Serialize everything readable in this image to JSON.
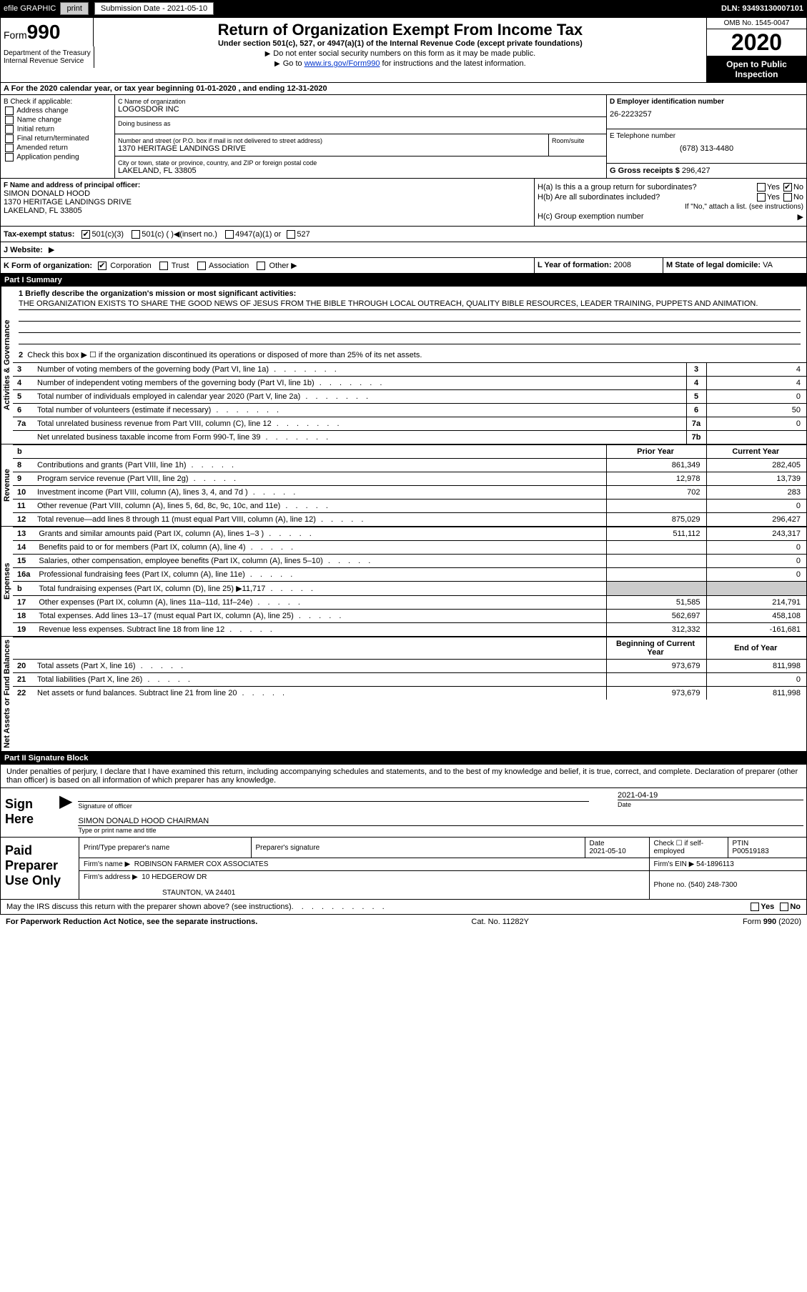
{
  "top_bar": {
    "efile_label": "efile GRAPHIC",
    "print_btn": "print",
    "sub_date_label": "Submission Date - 2021-05-10",
    "dln": "DLN: 93493130007101"
  },
  "header": {
    "form_prefix": "Form",
    "form_num": "990",
    "title": "Return of Organization Exempt From Income Tax",
    "subtitle": "Under section 501(c), 527, or 4947(a)(1) of the Internal Revenue Code (except private foundations)",
    "line1": "Do not enter social security numbers on this form as it may be made public.",
    "line2_pre": "Go to ",
    "line2_link": "www.irs.gov/Form990",
    "line2_post": " for instructions and the latest information.",
    "dept1": "Department of the Treasury",
    "dept2": "Internal Revenue Service",
    "omb": "OMB No. 1545-0047",
    "tax_year": "2020",
    "public_insp": "Open to Public Inspection"
  },
  "row_a": "A For the 2020 calendar year, or tax year beginning 01-01-2020   , and ending 12-31-2020",
  "section_b": {
    "header": "B Check if applicable:",
    "addr_change": "Address change",
    "name_change": "Name change",
    "initial": "Initial return",
    "final": "Final return/terminated",
    "amended": "Amended return",
    "app_pending": "Application pending"
  },
  "section_c": {
    "name_label": "C Name of organization",
    "org_name": "LOGOSDOR INC",
    "dba_label": "Doing business as",
    "addr_label": "Number and street (or P.O. box if mail is not delivered to street address)",
    "addr": "1370 HERITAGE LANDINGS DRIVE",
    "room_label": "Room/suite",
    "city_label": "City or town, state or province, country, and ZIP or foreign postal code",
    "city": "LAKELAND, FL  33805"
  },
  "section_d": {
    "label": "D Employer identification number",
    "ein": "26-2223257"
  },
  "section_e": {
    "label": "E Telephone number",
    "tel": "(678) 313-4480"
  },
  "section_g": {
    "label": "G Gross receipts $",
    "val": "296,427"
  },
  "section_f": {
    "label": "F  Name and address of principal officer:",
    "name": "SIMON DONALD HOOD",
    "addr1": "1370 HERITAGE LANDINGS DRIVE",
    "addr2": "LAKELAND, FL  33805"
  },
  "section_h": {
    "ha_label": "H(a)  Is this a a group return for subordinates?",
    "hb_label": "H(b)  Are all subordinates included?",
    "hb_note": "If \"No,\" attach a list. (see instructions)",
    "hc_label": "H(c)  Group exemption number",
    "yes": "Yes",
    "no": "No"
  },
  "row_i": {
    "label": "Tax-exempt status:",
    "opt1": "501(c)(3)",
    "opt2": "501(c) (  )",
    "insert": "(insert no.)",
    "opt3": "4947(a)(1) or",
    "opt4": "527"
  },
  "row_j": {
    "label": "J  Website:",
    "arrow_only": "▶"
  },
  "row_k": {
    "label": "K Form of organization:",
    "corp": "Corporation",
    "trust": "Trust",
    "assoc": "Association",
    "other": "Other"
  },
  "row_l": {
    "label": "L Year of formation:",
    "val": "2008"
  },
  "row_m": {
    "label": "M State of legal domicile:",
    "val": "VA"
  },
  "part1": {
    "header": "Part I      Summary",
    "vlabel_gov": "Activities & Governance",
    "vlabel_rev": "Revenue",
    "vlabel_exp": "Expenses",
    "vlabel_net": "Net Assets or Fund Balances",
    "line1_label": "1  Briefly describe the organization's mission or most significant activities:",
    "mission": "THE ORGANIZATION EXISTS TO SHARE THE GOOD NEWS OF JESUS FROM THE BIBLE THROUGH LOCAL OUTREACH, QUALITY BIBLE RESOURCES, LEADER TRAINING, PUPPETS AND ANIMATION.",
    "line2": "Check this box ▶ ☐  if the organization discontinued its operations or disposed of more than 25% of its net assets.",
    "rows_gov": [
      {
        "n": "3",
        "label": "Number of voting members of the governing body (Part VI, line 1a)",
        "box": "3",
        "val": "4"
      },
      {
        "n": "4",
        "label": "Number of independent voting members of the governing body (Part VI, line 1b)",
        "box": "4",
        "val": "4"
      },
      {
        "n": "5",
        "label": "Total number of individuals employed in calendar year 2020 (Part V, line 2a)",
        "box": "5",
        "val": "0"
      },
      {
        "n": "6",
        "label": "Total number of volunteers (estimate if necessary)",
        "box": "6",
        "val": "50"
      },
      {
        "n": "7a",
        "label": "Total unrelated business revenue from Part VIII, column (C), line 12",
        "box": "7a",
        "val": "0"
      },
      {
        "n": "",
        "label": "Net unrelated business taxable income from Form 990-T, line 39",
        "box": "7b",
        "val": ""
      }
    ],
    "prior_hdr": "Prior Year",
    "current_hdr": "Current Year",
    "rows_rev": [
      {
        "n": "8",
        "label": "Contributions and grants (Part VIII, line 1h)",
        "prior": "861,349",
        "curr": "282,405"
      },
      {
        "n": "9",
        "label": "Program service revenue (Part VIII, line 2g)",
        "prior": "12,978",
        "curr": "13,739"
      },
      {
        "n": "10",
        "label": "Investment income (Part VIII, column (A), lines 3, 4, and 7d )",
        "prior": "702",
        "curr": "283"
      },
      {
        "n": "11",
        "label": "Other revenue (Part VIII, column (A), lines 5, 6d, 8c, 9c, 10c, and 11e)",
        "prior": "",
        "curr": "0"
      },
      {
        "n": "12",
        "label": "Total revenue—add lines 8 through 11 (must equal Part VIII, column (A), line 12)",
        "prior": "875,029",
        "curr": "296,427"
      }
    ],
    "rows_exp": [
      {
        "n": "13",
        "label": "Grants and similar amounts paid (Part IX, column (A), lines 1–3 )",
        "prior": "511,112",
        "curr": "243,317"
      },
      {
        "n": "14",
        "label": "Benefits paid to or for members (Part IX, column (A), line 4)",
        "prior": "",
        "curr": "0"
      },
      {
        "n": "15",
        "label": "Salaries, other compensation, employee benefits (Part IX, column (A), lines 5–10)",
        "prior": "",
        "curr": "0"
      },
      {
        "n": "16a",
        "label": "Professional fundraising fees (Part IX, column (A), line 11e)",
        "prior": "",
        "curr": "0"
      },
      {
        "n": "b",
        "label": "Total fundraising expenses (Part IX, column (D), line 25) ▶11,717",
        "prior": "SHADE",
        "curr": "SHADE"
      },
      {
        "n": "17",
        "label": "Other expenses (Part IX, column (A), lines 11a–11d, 11f–24e)",
        "prior": "51,585",
        "curr": "214,791"
      },
      {
        "n": "18",
        "label": "Total expenses. Add lines 13–17 (must equal Part IX, column (A), line 25)",
        "prior": "562,697",
        "curr": "458,108"
      },
      {
        "n": "19",
        "label": "Revenue less expenses. Subtract line 18 from line 12",
        "prior": "312,332",
        "curr": "-161,681"
      }
    ],
    "begin_hdr": "Beginning of Current Year",
    "end_hdr": "End of Year",
    "rows_net": [
      {
        "n": "20",
        "label": "Total assets (Part X, line 16)",
        "prior": "973,679",
        "curr": "811,998"
      },
      {
        "n": "21",
        "label": "Total liabilities (Part X, line 26)",
        "prior": "",
        "curr": "0"
      },
      {
        "n": "22",
        "label": "Net assets or fund balances. Subtract line 21 from line 20",
        "prior": "973,679",
        "curr": "811,998"
      }
    ]
  },
  "part2": {
    "header": "Part II      Signature Block",
    "perjury": "Under penalties of perjury, I declare that I have examined this return, including accompanying schedules and statements, and to the best of my knowledge and belief, it is true, correct, and complete. Declaration of preparer (other than officer) is based on all information of which preparer has any knowledge."
  },
  "sign": {
    "label": "Sign Here",
    "sig_officer": "Signature of officer",
    "date_label": "Date",
    "date": "2021-04-19",
    "name_title": "SIMON DONALD HOOD  CHAIRMAN",
    "type_name": "Type or print name and title"
  },
  "paid": {
    "label": "Paid Preparer Use Only",
    "print_name": "Print/Type preparer's name",
    "prep_sig": "Preparer's signature",
    "date_label": "Date",
    "date": "2021-05-10",
    "check_if": "Check ☐ if self-employed",
    "ptin_label": "PTIN",
    "ptin": "P00519183",
    "firm_name_label": "Firm's name    ▶",
    "firm_name": "ROBINSON FARMER COX ASSOCIATES",
    "firm_ein_label": "Firm's EIN ▶",
    "firm_ein": "54-1896113",
    "firm_addr_label": "Firm's address ▶",
    "firm_addr1": "10 HEDGEROW DR",
    "firm_addr2": "STAUNTON, VA  24401",
    "phone_label": "Phone no.",
    "phone": "(540) 248-7300"
  },
  "footer": {
    "discuss": "May the IRS discuss this return with the preparer shown above? (see instructions)",
    "yes": "Yes",
    "no": "No",
    "paperwork": "For Paperwork Reduction Act Notice, see the separate instructions.",
    "cat": "Cat. No. 11282Y",
    "form": "Form 990 (2020)"
  }
}
